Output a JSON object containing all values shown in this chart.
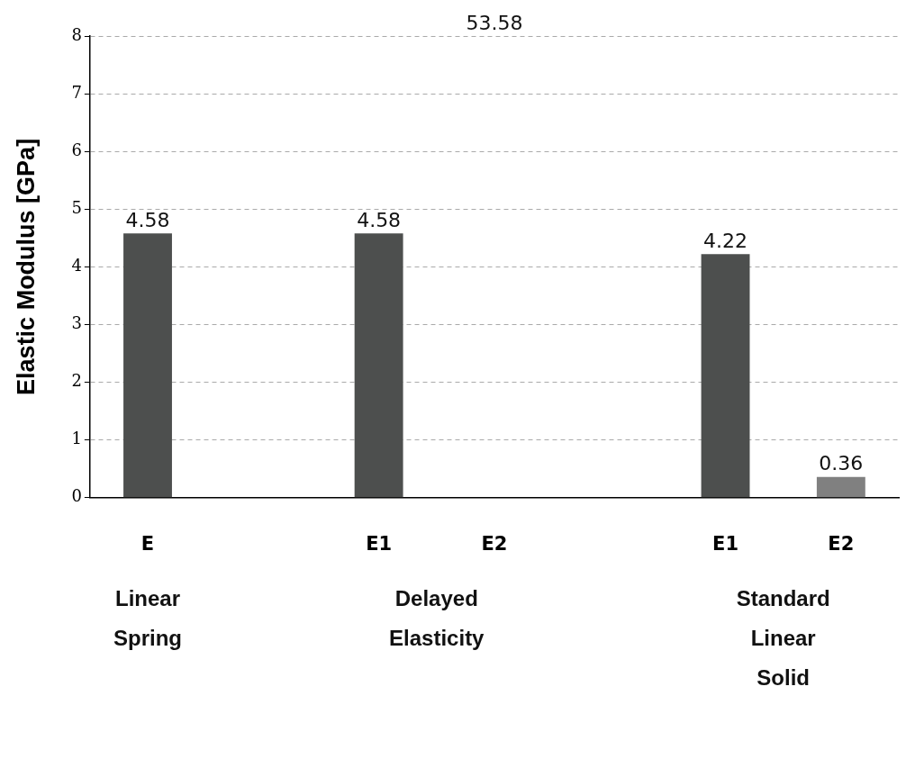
{
  "chart_data": {
    "type": "bar",
    "ylabel": "Elastic Modulus [GPa]",
    "categories": [
      "E",
      null,
      "E1",
      "E2",
      null,
      "E1",
      "E2"
    ],
    "values": [
      4.58,
      null,
      4.58,
      null,
      null,
      4.22,
      0.36
    ],
    "value_labels": [
      "4.58",
      null,
      "4.58",
      "53.58",
      null,
      "4.22",
      "0.36"
    ],
    "colors": [
      "#4d4f4e",
      "#4d4f4e",
      "#4d4f4e",
      "#808080",
      "#4d4f4e",
      "#4d4f4e",
      "#808080"
    ],
    "ylim": [
      0,
      8
    ],
    "yticks": [
      0,
      1,
      2,
      3,
      4,
      5,
      6,
      7,
      8
    ],
    "grid": "y",
    "legend": false,
    "annotations": [
      "Linear Spring",
      "Delayed Elasticity",
      "Standard Linear Solid"
    ]
  }
}
